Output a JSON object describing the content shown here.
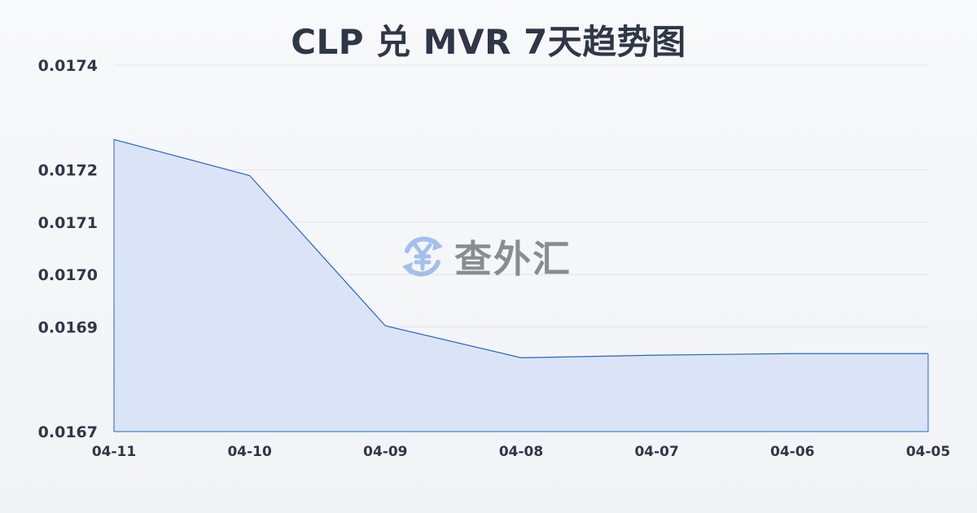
{
  "page": {
    "title": "CLP 兑 MVR 7天趋势图",
    "watermark": "查外汇"
  },
  "colors": {
    "line": "#2a63c5",
    "area": "#d9e3f6",
    "grid": "#e1e4ea",
    "text": "#2f3747",
    "watermark_icon": "#8fb0e8",
    "watermark_text": "#6c6f75"
  },
  "chart_data": {
    "type": "area",
    "title": "CLP 兑 MVR 7天趋势图",
    "xlabel": "",
    "ylabel": "",
    "categories": [
      "04-11",
      "04-10",
      "04-09",
      "04-08",
      "04-07",
      "04-06",
      "04-05"
    ],
    "series": [
      {
        "values": [
          0.017258,
          0.017189,
          0.016902,
          0.016841,
          0.016846,
          0.016849,
          0.016849
        ]
      }
    ],
    "ylim": [
      0.0167,
      0.0174
    ],
    "yticks": [
      "0.0174",
      "0.0172",
      "0.0171",
      "0.0170",
      "0.0169",
      "0.0167"
    ],
    "grid": true,
    "legend": "none"
  }
}
